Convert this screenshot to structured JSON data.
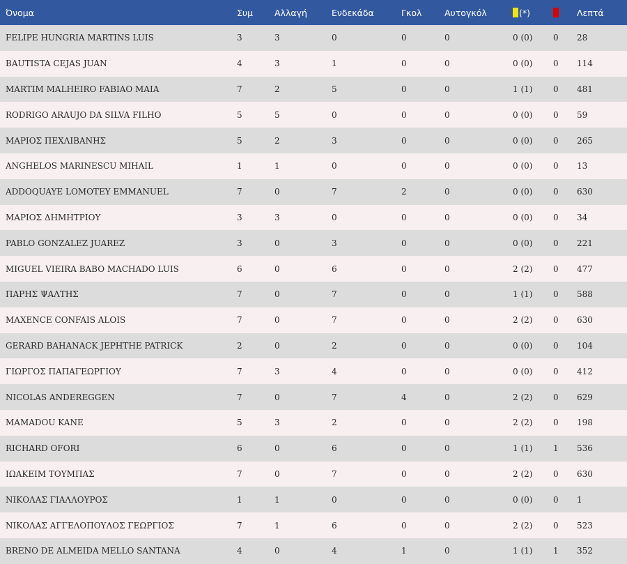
{
  "table": {
    "headers": {
      "name": "Όνομα",
      "appearances": "Συμ",
      "substitute": "Αλλαγή",
      "starting": "Ενδεκάδα",
      "goals": "Γκολ",
      "own_goals": "Αυτογκόλ",
      "yellow": "(*)",
      "red": "",
      "minutes": "Λεπτά"
    },
    "yellow_card_icon": "yellow-card-icon",
    "red_card_icon": "red-card-icon",
    "colors": {
      "header_bg": "#3258a0",
      "row_odd": "#dcdcdc",
      "row_even": "#f8eff0",
      "yellow_card": "#f0e600",
      "red_card": "#dd0000"
    },
    "rows": [
      {
        "name": "FELIPE HUNGRIA MARTINS LUIS",
        "apps": "3",
        "sub": "3",
        "start": "0",
        "goals": "0",
        "own": "0",
        "yellow": "0 (0)",
        "red": "0",
        "mins": "28"
      },
      {
        "name": "BAUTISTA CEJAS JUAN",
        "apps": "4",
        "sub": "3",
        "start": "1",
        "goals": "0",
        "own": "0",
        "yellow": "0 (0)",
        "red": "0",
        "mins": "114"
      },
      {
        "name": "MARTIM MALHEIRO FABIAO MAIA",
        "apps": "7",
        "sub": "2",
        "start": "5",
        "goals": "0",
        "own": "0",
        "yellow": "1 (1)",
        "red": "0",
        "mins": "481"
      },
      {
        "name": "RODRIGO ARAUJO DA SILVA FILHO",
        "apps": "5",
        "sub": "5",
        "start": "0",
        "goals": "0",
        "own": "0",
        "yellow": "0 (0)",
        "red": "0",
        "mins": "59"
      },
      {
        "name": "ΜΑΡΙΟΣ ΠΕΧΛΙΒΑΝΗΣ",
        "apps": "5",
        "sub": "2",
        "start": "3",
        "goals": "0",
        "own": "0",
        "yellow": "0 (0)",
        "red": "0",
        "mins": "265"
      },
      {
        "name": "ANGHELOS MARINESCU MIHAIL",
        "apps": "1",
        "sub": "1",
        "start": "0",
        "goals": "0",
        "own": "0",
        "yellow": "0 (0)",
        "red": "0",
        "mins": "13"
      },
      {
        "name": "ADDOQUAYE LOMOTEY EMMANUEL",
        "apps": "7",
        "sub": "0",
        "start": "7",
        "goals": "2",
        "own": "0",
        "yellow": "0 (0)",
        "red": "0",
        "mins": "630"
      },
      {
        "name": "ΜΑΡΙΟΣ ΔΗΜΗΤΡΙΟΥ",
        "apps": "3",
        "sub": "3",
        "start": "0",
        "goals": "0",
        "own": "0",
        "yellow": "0 (0)",
        "red": "0",
        "mins": "34"
      },
      {
        "name": "PABLO GONZALEZ JUAREZ",
        "apps": "3",
        "sub": "0",
        "start": "3",
        "goals": "0",
        "own": "0",
        "yellow": "0 (0)",
        "red": "0",
        "mins": "221"
      },
      {
        "name": "MIGUEL VIEIRA BABO MACHADO LUIS",
        "apps": "6",
        "sub": "0",
        "start": "6",
        "goals": "0",
        "own": "0",
        "yellow": "2 (2)",
        "red": "0",
        "mins": "477"
      },
      {
        "name": "ΠΑΡΗΣ ΨΑΛΤΗΣ",
        "apps": "7",
        "sub": "0",
        "start": "7",
        "goals": "0",
        "own": "0",
        "yellow": "1 (1)",
        "red": "0",
        "mins": "588"
      },
      {
        "name": "MAXENCE CONFAIS ALOIS",
        "apps": "7",
        "sub": "0",
        "start": "7",
        "goals": "0",
        "own": "0",
        "yellow": "2 (2)",
        "red": "0",
        "mins": "630"
      },
      {
        "name": "GERARD BAHANACK JEPHTHE PATRICK",
        "apps": "2",
        "sub": "0",
        "start": "2",
        "goals": "0",
        "own": "0",
        "yellow": "0 (0)",
        "red": "0",
        "mins": "104"
      },
      {
        "name": "ΓΙΩΡΓΟΣ ΠΑΠΑΓΕΩΡΓΙΟΥ",
        "apps": "7",
        "sub": "3",
        "start": "4",
        "goals": "0",
        "own": "0",
        "yellow": "0 (0)",
        "red": "0",
        "mins": "412"
      },
      {
        "name": "NICOLAS ANDEREGGEN",
        "apps": "7",
        "sub": "0",
        "start": "7",
        "goals": "4",
        "own": "0",
        "yellow": "2 (2)",
        "red": "0",
        "mins": "629"
      },
      {
        "name": "MAMADOU KANE",
        "apps": "5",
        "sub": "3",
        "start": "2",
        "goals": "0",
        "own": "0",
        "yellow": "2 (2)",
        "red": "0",
        "mins": "198"
      },
      {
        "name": "RICHARD OFORI",
        "apps": "6",
        "sub": "0",
        "start": "6",
        "goals": "0",
        "own": "0",
        "yellow": "1 (1)",
        "red": "1",
        "mins": "536"
      },
      {
        "name": "ΙΩΑΚΕΙΜ ΤΟΥΜΠΑΣ",
        "apps": "7",
        "sub": "0",
        "start": "7",
        "goals": "0",
        "own": "0",
        "yellow": "2 (2)",
        "red": "0",
        "mins": "630"
      },
      {
        "name": "ΝΙΚΟΛΑΣ ΓΙΑΛΛΟΥΡΟΣ",
        "apps": "1",
        "sub": "1",
        "start": "0",
        "goals": "0",
        "own": "0",
        "yellow": "0 (0)",
        "red": "0",
        "mins": "1"
      },
      {
        "name": "ΝΙΚΟΛΑΣ ΑΓΓΕΛΟΠΟΥΛΟΣ ΓΕΩΡΓΙΟΣ",
        "apps": "7",
        "sub": "1",
        "start": "6",
        "goals": "0",
        "own": "0",
        "yellow": "2 (2)",
        "red": "0",
        "mins": "523"
      },
      {
        "name": "BRENO DE ALMEIDA MELLO SANTANA",
        "apps": "4",
        "sub": "0",
        "start": "4",
        "goals": "1",
        "own": "0",
        "yellow": "1 (1)",
        "red": "1",
        "mins": "352"
      }
    ]
  }
}
